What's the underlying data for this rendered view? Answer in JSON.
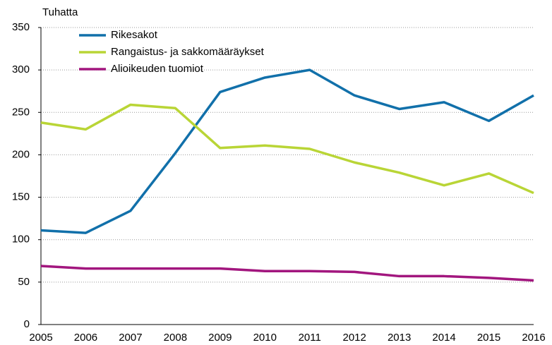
{
  "chart_data": {
    "type": "line",
    "y_label": "Tuhatta",
    "categories": [
      "2005",
      "2006",
      "2007",
      "2008",
      "2009",
      "2010",
      "2011",
      "2012",
      "2013",
      "2014",
      "2015",
      "2016"
    ],
    "series": [
      {
        "name": "Rikesakot",
        "color": "#1170aa",
        "values": [
          111,
          108,
          134,
          202,
          274,
          291,
          300,
          270,
          254,
          262,
          240,
          270
        ]
      },
      {
        "name": "Rangaistus- ja sakkomääräykset",
        "color": "#b9d536",
        "values": [
          238,
          230,
          259,
          255,
          208,
          211,
          207,
          191,
          179,
          164,
          178,
          155
        ]
      },
      {
        "name": "Alioikeuden tuomiot",
        "color": "#a2167e",
        "values": [
          69,
          66,
          66,
          66,
          66,
          63,
          63,
          62,
          57,
          57,
          55,
          52
        ]
      }
    ],
    "ylim": [
      0,
      350
    ],
    "yticks": [
      0,
      50,
      100,
      150,
      200,
      250,
      300,
      350
    ],
    "grid": true,
    "legend": "top-left"
  }
}
